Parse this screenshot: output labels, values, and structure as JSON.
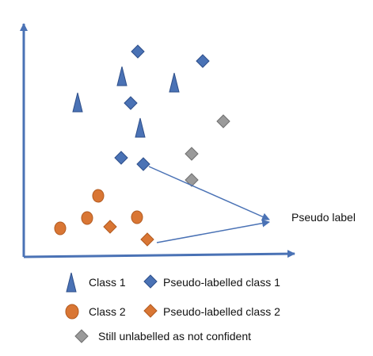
{
  "colors": {
    "class1": "#4a72b5",
    "class1_edge": "#2e4f8a",
    "class2": "#d97634",
    "class2_edge": "#b25a1f",
    "unlabelled": "#9a9a9a",
    "unlabelled_edge": "#6f6f6f",
    "axis": "#4a72b5",
    "arrow": "#4a72b5"
  },
  "annotation": {
    "pseudo_label": "Pseudo label"
  },
  "legend": {
    "class1": "Class 1",
    "pseudo_class1": "Pseudo-labelled class 1",
    "class2": "Class 2",
    "pseudo_class2": "Pseudo-labelled class 2",
    "unlabelled": "Still unlabelled as not confident"
  },
  "icons": {
    "class1": "triangle",
    "pseudo_class1": "diamond",
    "class2": "circle",
    "pseudo_class2": "diamond",
    "unlabelled": "diamond"
  }
}
